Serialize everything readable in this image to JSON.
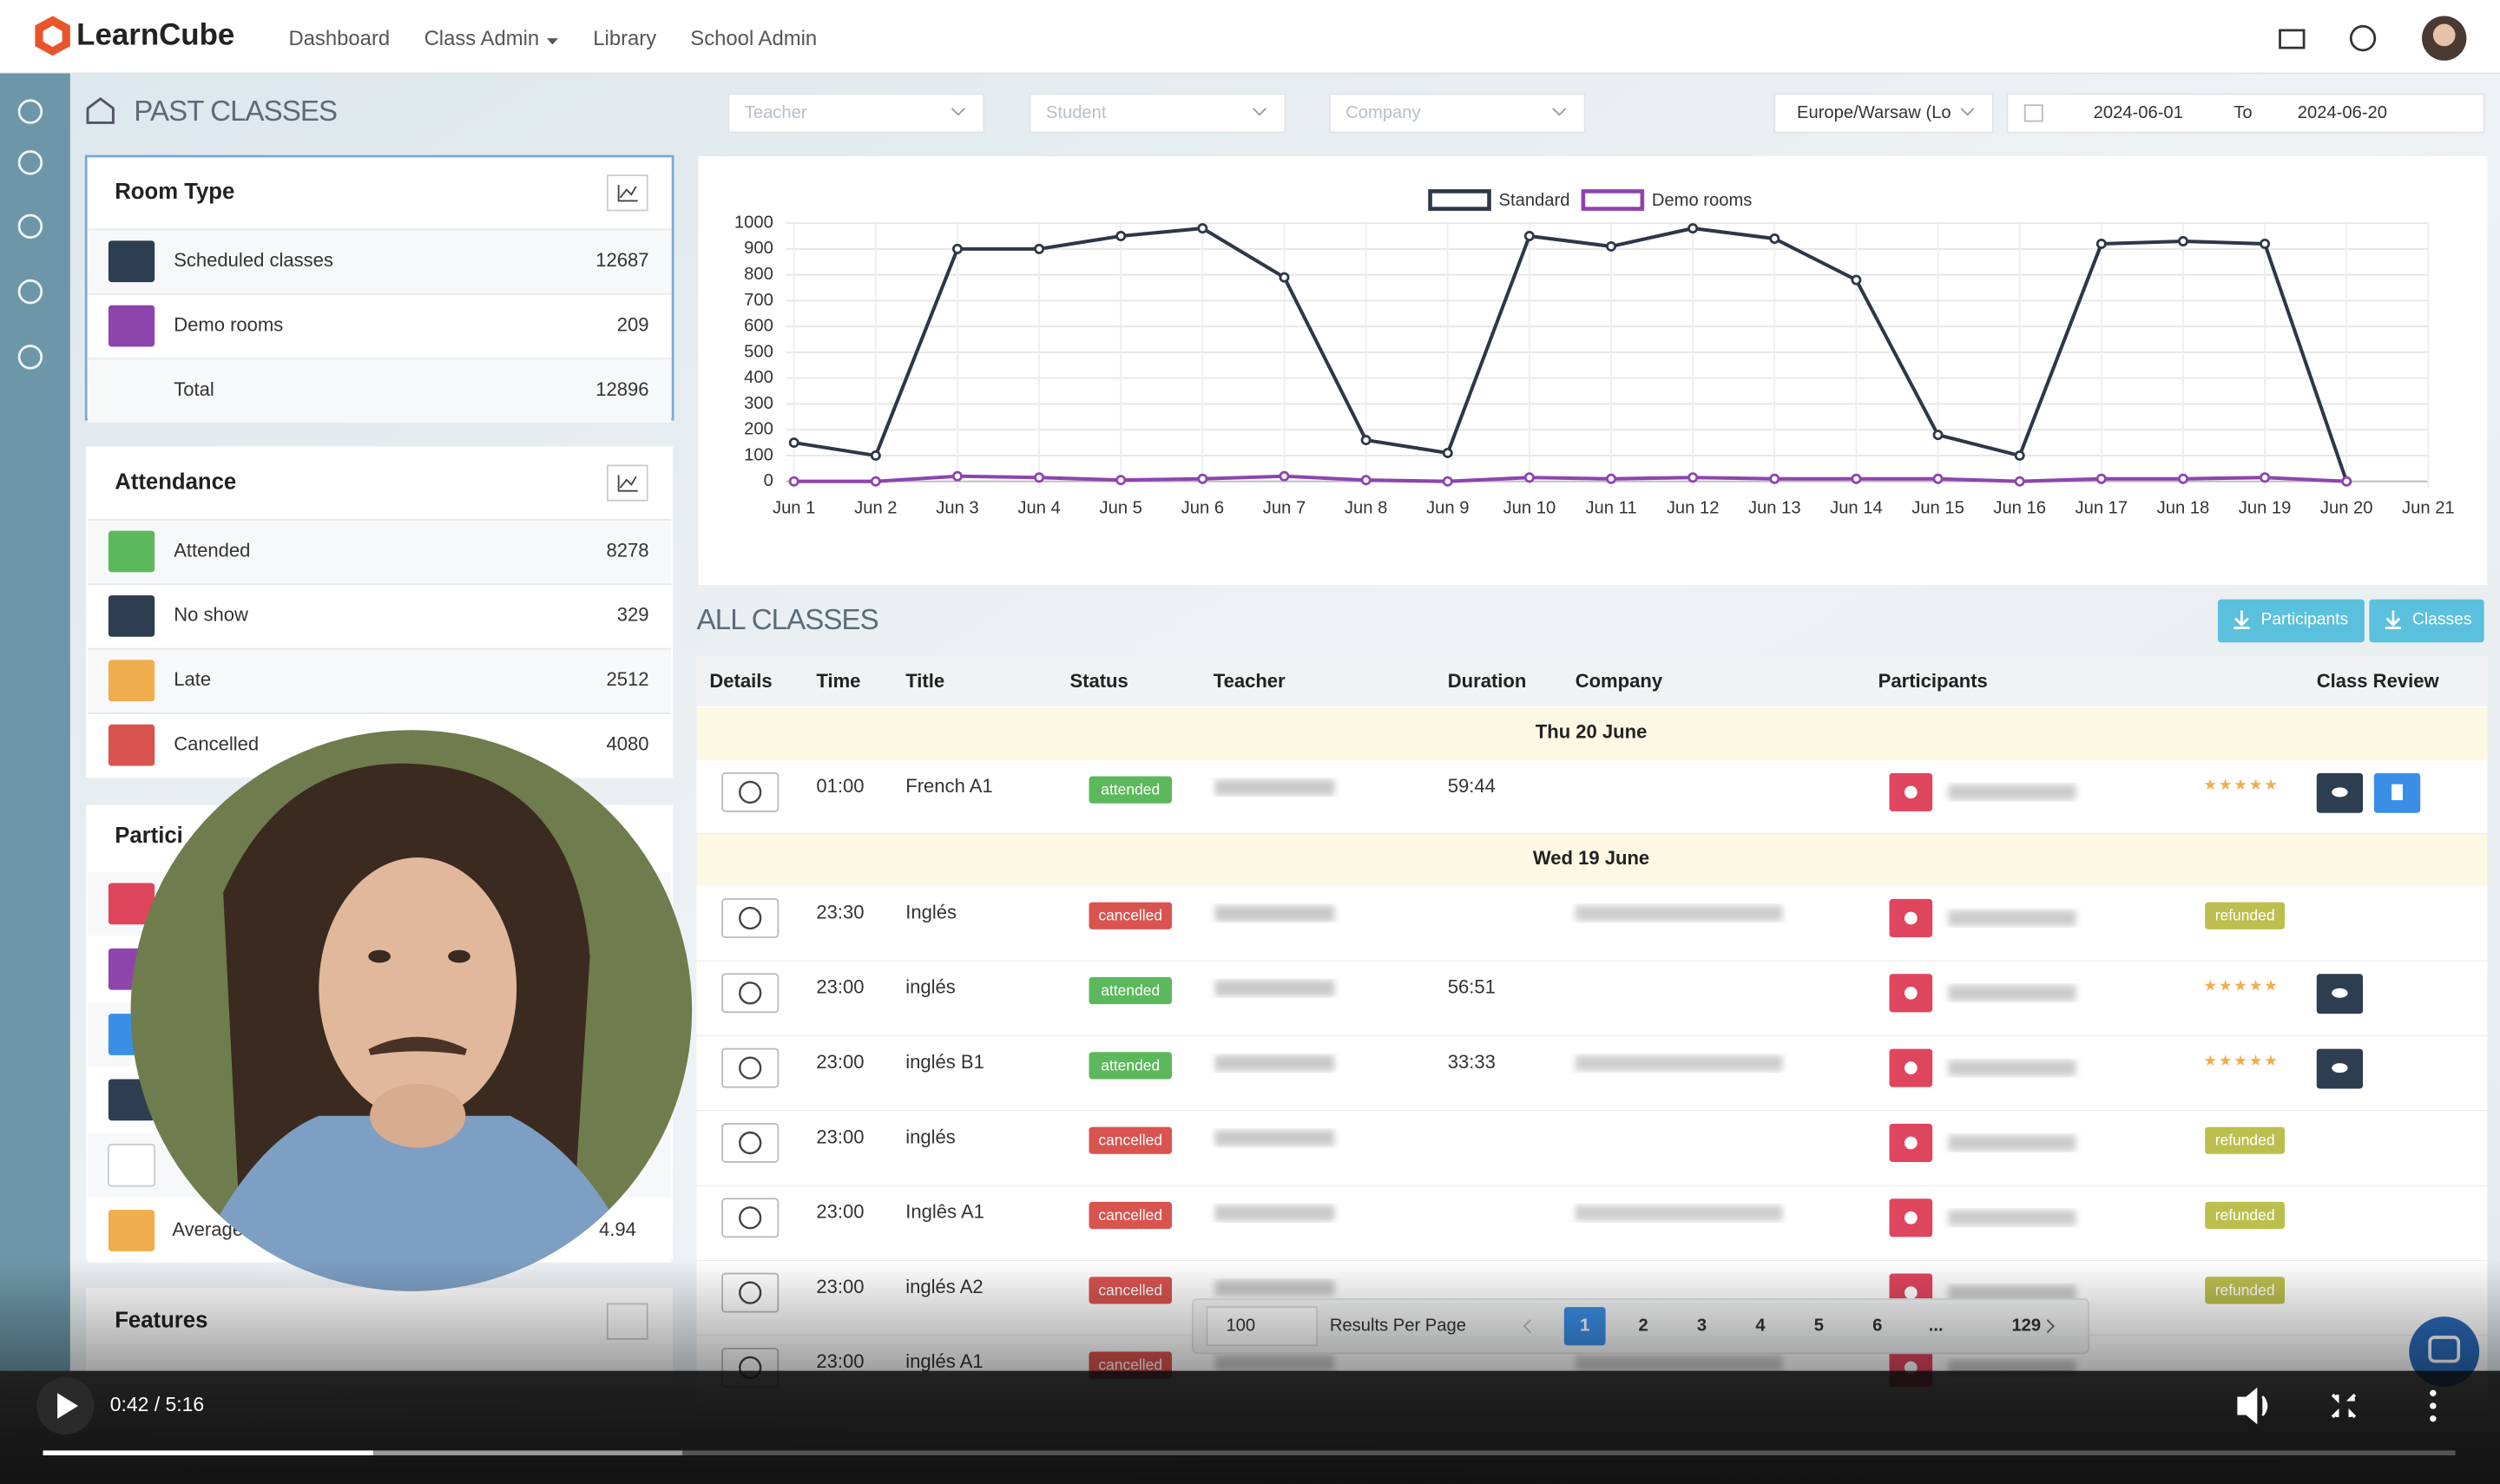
{
  "header": {
    "brand": "LearnCube",
    "nav": [
      "Dashboard",
      "Class Admin",
      "Library",
      "School Admin"
    ]
  },
  "page_title": "PAST CLASSES",
  "filters": {
    "teacher": "Teacher",
    "student": "Student",
    "company": "Company",
    "timezone": "Europe/Warsaw (Lo",
    "date_from": "2024-06-01",
    "to": "To",
    "date_to": "2024-06-20"
  },
  "room_type": {
    "title": "Room Type",
    "rows": [
      {
        "label": "Scheduled classes",
        "value": 12687
      },
      {
        "label": "Demo rooms",
        "value": 209
      },
      {
        "label": "Total",
        "value": 12896
      }
    ]
  },
  "attendance": {
    "title": "Attendance",
    "rows": [
      {
        "label": "Attended",
        "value": 8278
      },
      {
        "label": "No show",
        "value": 329
      },
      {
        "label": "Late",
        "value": 2512
      },
      {
        "label": "Cancelled",
        "value": 4080
      }
    ]
  },
  "participants_panel": {
    "title": "Partici",
    "average_label": "Average",
    "average_value": 4.94
  },
  "features_panel": {
    "title": "Features"
  },
  "chart_data": {
    "type": "line",
    "categories": [
      "Jun 1",
      "Jun 2",
      "Jun 3",
      "Jun 4",
      "Jun 5",
      "Jun 6",
      "Jun 7",
      "Jun 8",
      "Jun 9",
      "Jun 10",
      "Jun 11",
      "Jun 12",
      "Jun 13",
      "Jun 14",
      "Jun 15",
      "Jun 16",
      "Jun 17",
      "Jun 18",
      "Jun 19",
      "Jun 20",
      "Jun 21"
    ],
    "series": [
      {
        "name": "Standard",
        "color": "#2d3748",
        "values": [
          150,
          100,
          900,
          900,
          950,
          980,
          790,
          160,
          110,
          950,
          910,
          980,
          940,
          780,
          180,
          100,
          920,
          930,
          920,
          0,
          null
        ]
      },
      {
        "name": "Demo rooms",
        "color": "#8e44ad",
        "values": [
          0,
          0,
          20,
          15,
          5,
          10,
          20,
          5,
          0,
          15,
          10,
          15,
          10,
          10,
          10,
          0,
          10,
          10,
          15,
          0,
          null
        ]
      }
    ],
    "ylim": [
      0,
      1000
    ],
    "yticks": [
      0,
      100,
      200,
      300,
      400,
      500,
      600,
      700,
      800,
      900,
      1000
    ],
    "grid": true
  },
  "all_classes": {
    "title": "ALL CLASSES",
    "buttons": [
      "Participants",
      "Classes"
    ],
    "columns": [
      "Details",
      "Time",
      "Title",
      "Status",
      "Teacher",
      "Duration",
      "Company",
      "Participants",
      "Class Review"
    ],
    "groups": [
      {
        "date": "Thu 20 June",
        "rows": [
          {
            "time": "01:00",
            "title": "French A1",
            "status": "attended",
            "duration": "59:44",
            "review": "★★★★★"
          }
        ]
      },
      {
        "date": "Wed 19 June",
        "rows": [
          {
            "time": "23:30",
            "title": "Inglés",
            "status": "cancelled",
            "review": "refunded"
          },
          {
            "time": "23:00",
            "title": "inglés",
            "status": "attended",
            "duration": "56:51",
            "review": "★★★★★"
          },
          {
            "time": "23:00",
            "title": "inglés B1",
            "status": "attended",
            "duration": "33:33",
            "review": "★★★★★"
          },
          {
            "time": "23:00",
            "title": "inglés",
            "status": "cancelled",
            "review": "refunded"
          },
          {
            "time": "23:00",
            "title": "Inglês A1",
            "status": "cancelled",
            "review": "refunded"
          },
          {
            "time": "23:00",
            "title": "inglés A2",
            "status": "cancelled",
            "review": "refunded"
          },
          {
            "time": "23:00",
            "title": "inglés A1",
            "status": "cancelled"
          }
        ]
      }
    ]
  },
  "pagination": {
    "per_page": "100",
    "label": "Results Per Page",
    "pages": [
      1,
      2,
      3,
      4,
      5,
      6,
      "...",
      129
    ]
  },
  "video": {
    "time": "0:42 / 5:16"
  }
}
